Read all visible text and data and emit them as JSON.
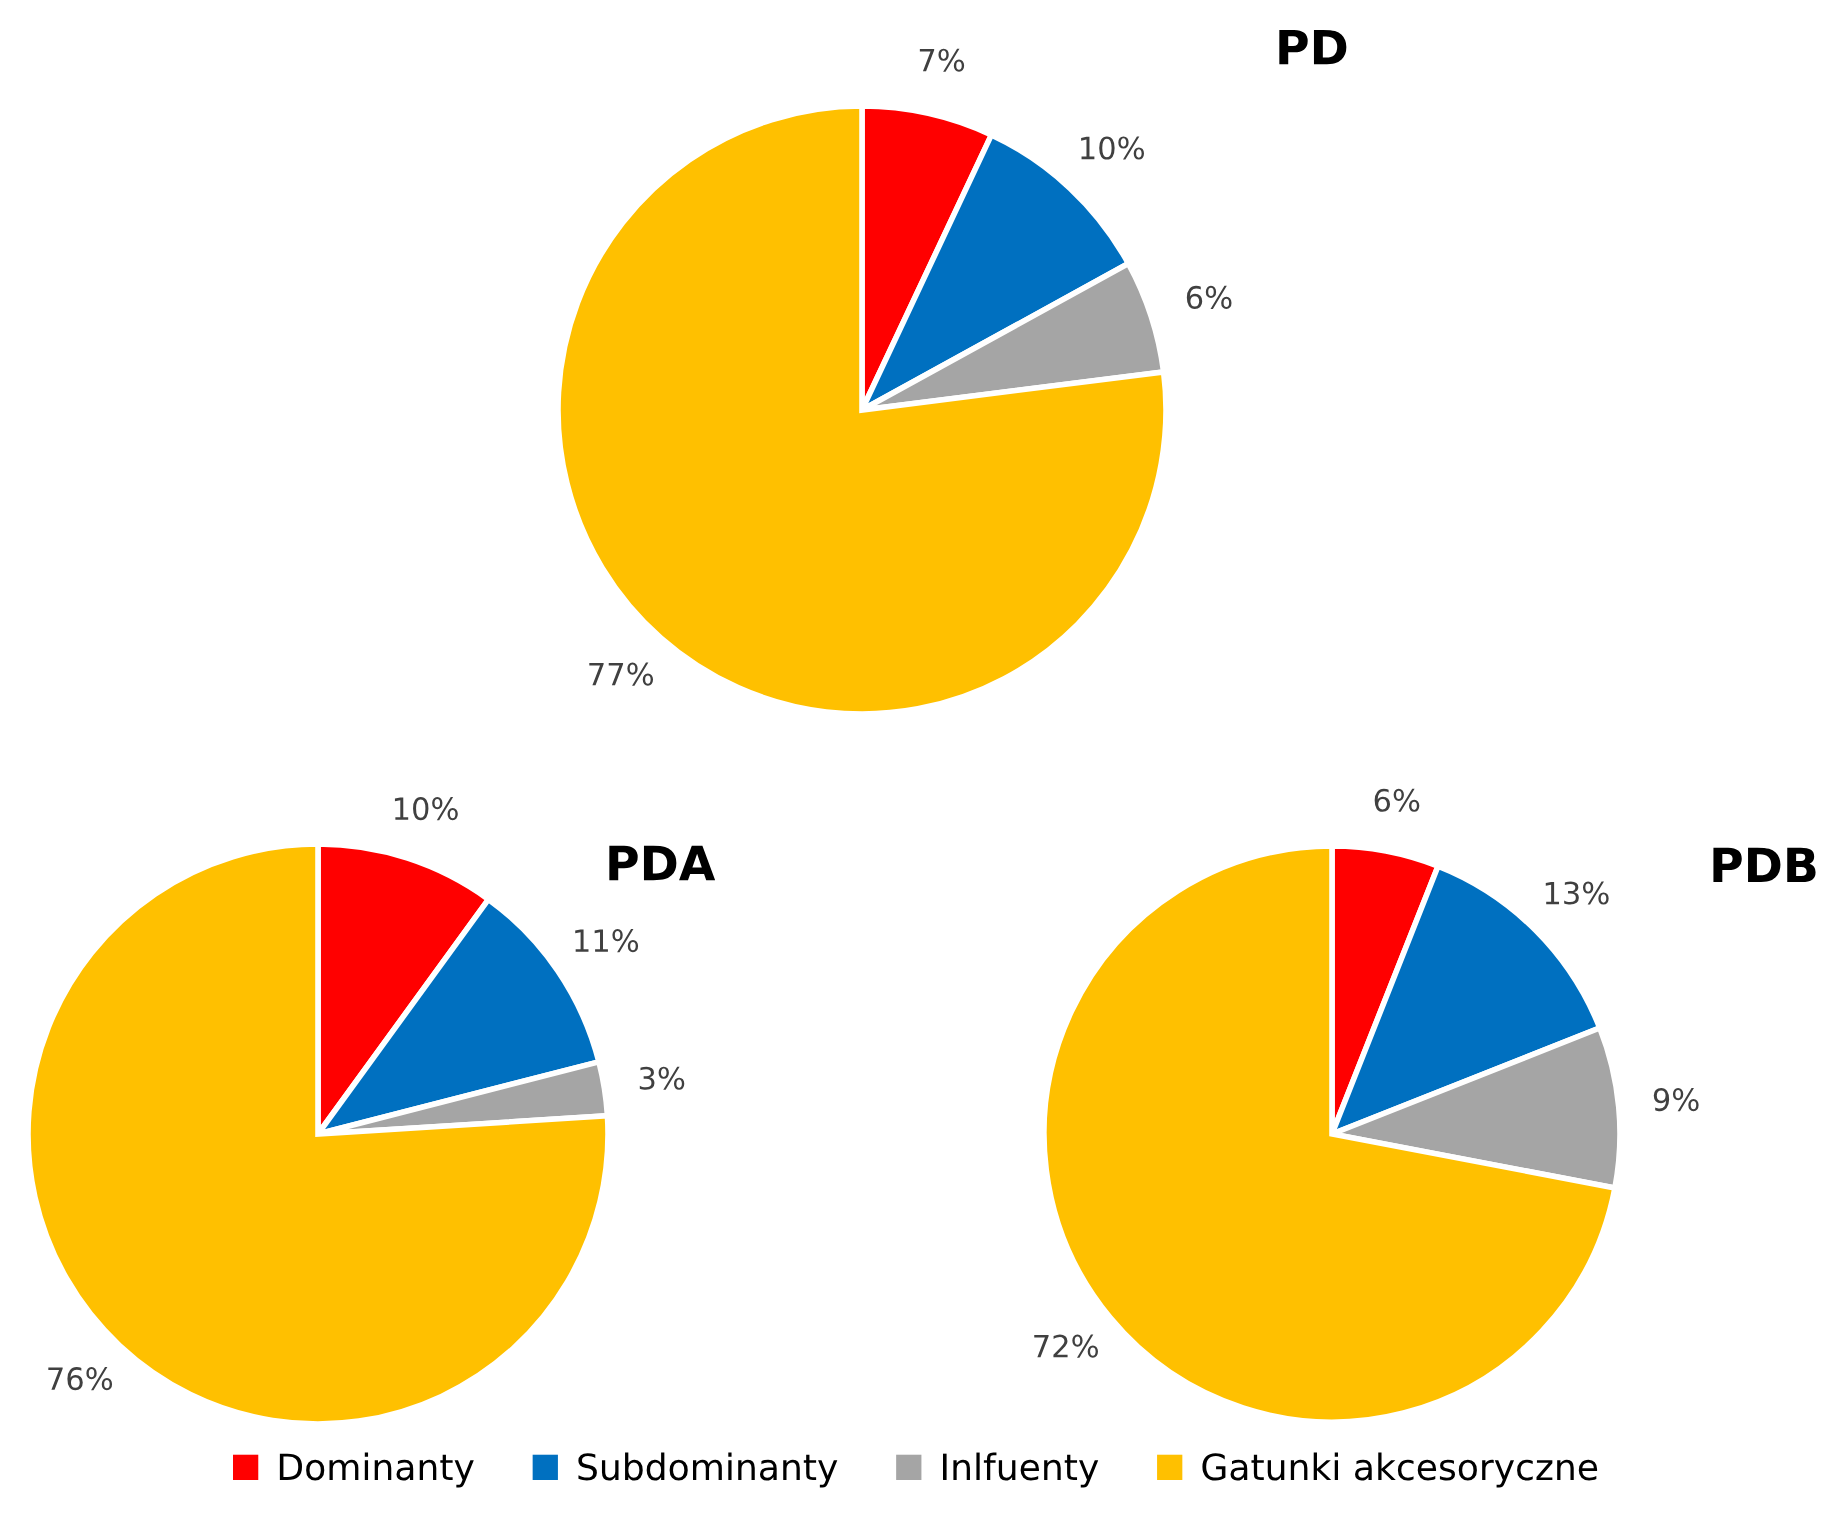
{
  "chart_data": [
    {
      "type": "pie",
      "title": "PD",
      "categories": [
        "Dominanty",
        "Subdominanty",
        "Inlfuenty",
        "Gatunki akcesoryczne"
      ],
      "values": [
        7,
        10,
        6,
        77
      ],
      "colors": [
        "#ff0000",
        "#0070c0",
        "#a5a5a5",
        "#ffc000"
      ],
      "value_labels": [
        "7%",
        "10%",
        "6%",
        "77%"
      ],
      "legend": "bottom"
    },
    {
      "type": "pie",
      "title": "PDA",
      "categories": [
        null,
        null,
        null,
        null
      ],
      "values": [
        10,
        11,
        3,
        76
      ],
      "colors": [
        "#ff0000",
        "#0070c0",
        "#a5a5a5",
        "#ffc000"
      ],
      "value_labels": [
        "10%",
        "11%",
        "3%",
        "76%"
      ]
    },
    {
      "type": "pie",
      "title": "PDB",
      "categories": [
        null,
        null,
        null,
        null
      ],
      "values": [
        6,
        13,
        9,
        72
      ],
      "colors": [
        "#ff0000",
        "#0070c0",
        "#a5a5a5",
        "#ffc000"
      ],
      "value_labels": [
        "6%",
        "13%",
        "9%",
        "72%"
      ]
    }
  ]
}
